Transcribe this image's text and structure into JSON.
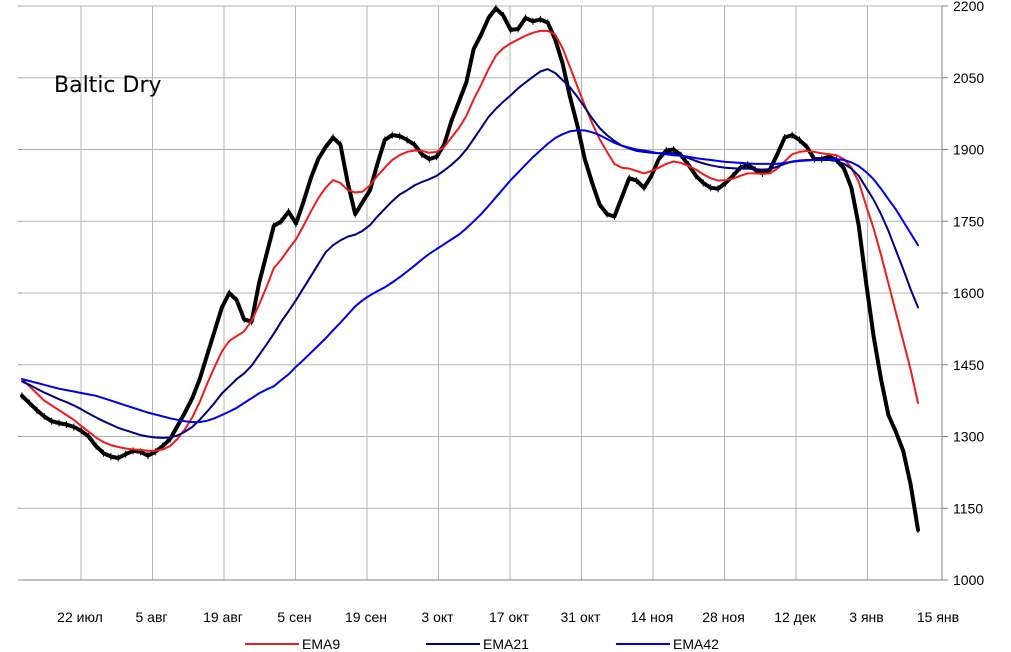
{
  "chart_data": {
    "type": "line",
    "title": "Baltic Dry",
    "xlabel": "",
    "ylabel": "",
    "ylim": [
      1000,
      2200
    ],
    "yticks": [
      1000,
      1150,
      1300,
      1450,
      1600,
      1750,
      1900,
      2050,
      2200
    ],
    "y_axis_side": "right",
    "grid": true,
    "legend_position": "bottom",
    "x_tick_labels": [
      "22 июл",
      "5 авг",
      "19 авг",
      "5 сен",
      "19 сен",
      "3 окт",
      "17 окт",
      "31 окт",
      "14 ноя",
      "28 ноя",
      "12 дек",
      "3 янв",
      "15 янв"
    ],
    "series": [
      {
        "name": "Baltic Dry",
        "color": "#000000",
        "values": [
          1385,
          1370,
          1355,
          1342,
          1332,
          1328,
          1325,
          1320,
          1312,
          1300,
          1280,
          1265,
          1258,
          1255,
          1263,
          1270,
          1268,
          1260,
          1268,
          1280,
          1295,
          1322,
          1350,
          1380,
          1420,
          1470,
          1520,
          1570,
          1600,
          1585,
          1545,
          1540,
          1620,
          1680,
          1740,
          1750,
          1770,
          1745,
          1790,
          1840,
          1880,
          1905,
          1925,
          1910,
          1830,
          1765,
          1790,
          1815,
          1870,
          1920,
          1930,
          1928,
          1920,
          1910,
          1890,
          1880,
          1885,
          1910,
          1960,
          2000,
          2040,
          2110,
          2140,
          2175,
          2195,
          2180,
          2150,
          2152,
          2175,
          2168,
          2172,
          2165,
          2130,
          2080,
          2010,
          1950,
          1880,
          1830,
          1785,
          1765,
          1760,
          1800,
          1840,
          1835,
          1820,
          1845,
          1880,
          1898,
          1900,
          1888,
          1868,
          1845,
          1830,
          1820,
          1818,
          1830,
          1845,
          1862,
          1868,
          1858,
          1850,
          1858,
          1890,
          1925,
          1930,
          1920,
          1905,
          1880,
          1880,
          1885,
          1878,
          1860,
          1820,
          1740,
          1620,
          1510,
          1420,
          1345,
          1310,
          1270,
          1200,
          1105
        ]
      },
      {
        "name": "EMA9",
        "color": "#ee1c1c",
        "values": [
          1420,
          1405,
          1390,
          1375,
          1365,
          1355,
          1345,
          1335,
          1322,
          1310,
          1298,
          1288,
          1282,
          1278,
          1275,
          1273,
          1272,
          1270,
          1270,
          1273,
          1280,
          1295,
          1315,
          1340,
          1372,
          1410,
          1445,
          1478,
          1500,
          1510,
          1520,
          1542,
          1575,
          1612,
          1652,
          1670,
          1692,
          1712,
          1740,
          1770,
          1798,
          1820,
          1836,
          1830,
          1815,
          1810,
          1812,
          1825,
          1845,
          1862,
          1878,
          1888,
          1895,
          1898,
          1897,
          1893,
          1895,
          1905,
          1925,
          1945,
          1970,
          2005,
          2035,
          2068,
          2096,
          2112,
          2122,
          2130,
          2138,
          2144,
          2148,
          2148,
          2140,
          2112,
          2072,
          2032,
          1992,
          1955,
          1922,
          1895,
          1870,
          1862,
          1860,
          1855,
          1850,
          1855,
          1862,
          1870,
          1875,
          1872,
          1866,
          1858,
          1848,
          1840,
          1835,
          1836,
          1839,
          1845,
          1850,
          1850,
          1849,
          1850,
          1860,
          1875,
          1890,
          1895,
          1897,
          1895,
          1892,
          1890,
          1888,
          1880,
          1862,
          1832,
          1782,
          1735,
          1680,
          1620,
          1560,
          1500,
          1440,
          1370
        ]
      },
      {
        "name": "EMA21",
        "color": "#000080",
        "values": [
          1415,
          1408,
          1400,
          1392,
          1385,
          1378,
          1372,
          1365,
          1357,
          1348,
          1340,
          1332,
          1325,
          1318,
          1313,
          1308,
          1303,
          1300,
          1298,
          1297,
          1298,
          1302,
          1310,
          1320,
          1335,
          1352,
          1370,
          1390,
          1405,
          1420,
          1432,
          1448,
          1470,
          1492,
          1515,
          1540,
          1562,
          1585,
          1610,
          1635,
          1660,
          1685,
          1700,
          1710,
          1718,
          1722,
          1730,
          1742,
          1760,
          1776,
          1792,
          1806,
          1815,
          1825,
          1832,
          1838,
          1845,
          1856,
          1868,
          1882,
          1900,
          1922,
          1945,
          1968,
          1985,
          2000,
          2013,
          2028,
          2040,
          2052,
          2063,
          2068,
          2060,
          2045,
          2030,
          2010,
          1988,
          1965,
          1945,
          1930,
          1918,
          1908,
          1902,
          1897,
          1895,
          1893,
          1892,
          1893,
          1892,
          1888,
          1882,
          1876,
          1871,
          1867,
          1864,
          1862,
          1861,
          1860,
          1860,
          1859,
          1858,
          1859,
          1864,
          1870,
          1875,
          1877,
          1878,
          1878,
          1878,
          1878,
          1876,
          1870,
          1860,
          1845,
          1820,
          1795,
          1765,
          1730,
          1690,
          1650,
          1608,
          1570
        ]
      },
      {
        "name": "EMA42",
        "color": "#0000ee",
        "values": [
          1420,
          1416,
          1412,
          1408,
          1404,
          1400,
          1397,
          1394,
          1391,
          1388,
          1385,
          1380,
          1375,
          1370,
          1365,
          1360,
          1355,
          1350,
          1346,
          1342,
          1338,
          1335,
          1332,
          1330,
          1330,
          1333,
          1338,
          1345,
          1352,
          1360,
          1370,
          1380,
          1390,
          1398,
          1405,
          1418,
          1430,
          1446,
          1460,
          1475,
          1490,
          1505,
          1522,
          1538,
          1555,
          1572,
          1585,
          1595,
          1604,
          1612,
          1622,
          1633,
          1645,
          1657,
          1670,
          1682,
          1692,
          1702,
          1712,
          1722,
          1735,
          1750,
          1765,
          1782,
          1800,
          1818,
          1836,
          1852,
          1868,
          1884,
          1898,
          1912,
          1924,
          1932,
          1938,
          1940,
          1940,
          1936,
          1930,
          1922,
          1914,
          1908,
          1904,
          1900,
          1898,
          1895,
          1892,
          1890,
          1888,
          1887,
          1885,
          1882,
          1880,
          1878,
          1876,
          1874,
          1873,
          1872,
          1871,
          1870,
          1870,
          1870,
          1870,
          1872,
          1874,
          1876,
          1877,
          1878,
          1879,
          1880,
          1880,
          1878,
          1873,
          1865,
          1853,
          1838,
          1818,
          1796,
          1775,
          1750,
          1725,
          1700
        ]
      }
    ]
  }
}
